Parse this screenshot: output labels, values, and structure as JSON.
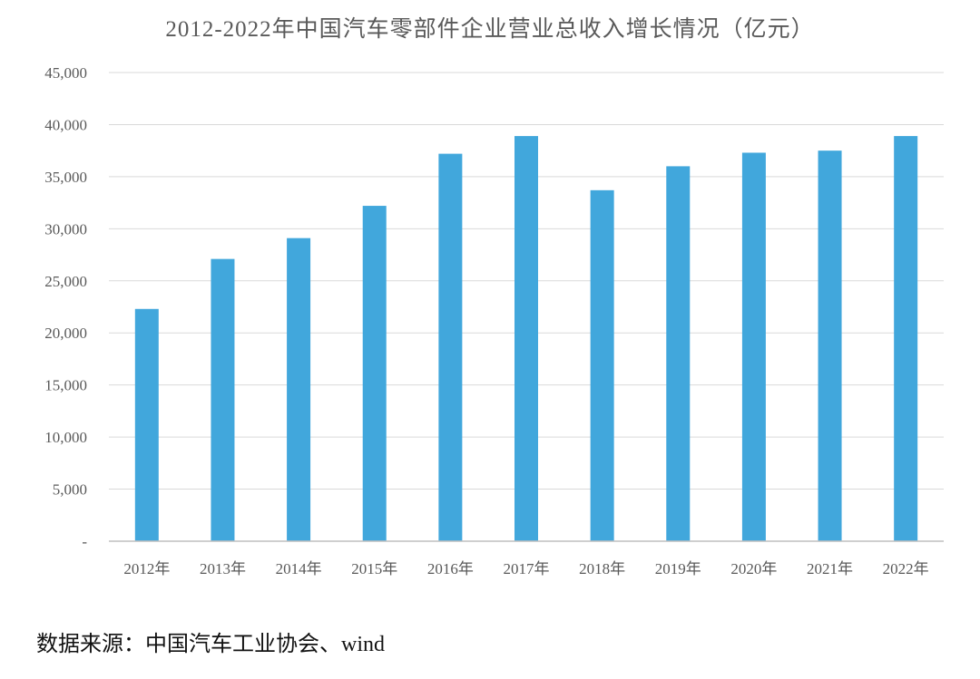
{
  "chart_data": {
    "type": "bar",
    "title": "2012-2022年中国汽车零部件企业营业总收入增长情况（亿元）",
    "categories": [
      "2012年",
      "2013年",
      "2014年",
      "2015年",
      "2016年",
      "2017年",
      "2018年",
      "2019年",
      "2020年",
      "2021年",
      "2022年"
    ],
    "values": [
      22300,
      27100,
      29100,
      32200,
      37200,
      38900,
      33700,
      36000,
      37300,
      37500,
      38900
    ],
    "ylim": [
      0,
      45000
    ],
    "yticks": [
      0,
      5000,
      10000,
      15000,
      20000,
      25000,
      30000,
      35000,
      40000,
      45000
    ],
    "ytick_labels": [
      "-",
      "5,000",
      "10,000",
      "15,000",
      "20,000",
      "25,000",
      "30,000",
      "35,000",
      "40,000",
      "45,000"
    ],
    "grid": true,
    "legend": "none",
    "colors": {
      "bar": "#41a7dc",
      "grid": "#d9d9d9",
      "axis": "#bfbfbf",
      "text": "#595959"
    }
  },
  "footer": {
    "source": "数据来源：中国汽车工业协会、wind"
  }
}
